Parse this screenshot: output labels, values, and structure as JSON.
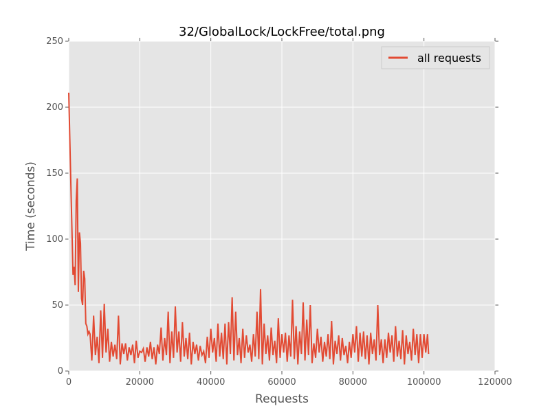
{
  "chart_data": {
    "type": "line",
    "title": "32/GlobalLock/LockFree/total.png",
    "xlabel": "Requests",
    "ylabel": "Time (seconds)",
    "xlim": [
      0,
      120000
    ],
    "xticks": [
      0,
      20000,
      40000,
      60000,
      80000,
      100000,
      120000
    ],
    "ylim": [
      0,
      250
    ],
    "yticks": [
      0,
      50,
      100,
      150,
      200,
      250
    ],
    "grid": true,
    "legend": "upper right",
    "background": "#e5e5e5",
    "x": [
      0,
      300,
      600,
      900,
      1200,
      1500,
      1800,
      2100,
      2400,
      2700,
      3000,
      3300,
      3600,
      3900,
      4200,
      4500,
      4800,
      5100,
      5400,
      5700,
      6000,
      6500,
      7000,
      7500,
      8000,
      8500,
      9000,
      9500,
      10000,
      10500,
      11000,
      11500,
      12000,
      12500,
      13000,
      13500,
      14000,
      14500,
      15000,
      15500,
      16000,
      16500,
      17000,
      17500,
      18000,
      18500,
      19000,
      19500,
      20000,
      20500,
      21000,
      21500,
      22000,
      22500,
      23000,
      23500,
      24000,
      24500,
      25000,
      25500,
      26000,
      26500,
      27000,
      27500,
      28000,
      28500,
      29000,
      29500,
      30000,
      30500,
      31000,
      31500,
      32000,
      32500,
      33000,
      33500,
      34000,
      34500,
      35000,
      35500,
      36000,
      36500,
      37000,
      37500,
      38000,
      38500,
      39000,
      39500,
      40000,
      40500,
      41000,
      41500,
      42000,
      42500,
      43000,
      43500,
      44000,
      44500,
      45000,
      45500,
      46000,
      46500,
      47000,
      47500,
      48000,
      48500,
      49000,
      49500,
      50000,
      50500,
      51000,
      51500,
      52000,
      52500,
      53000,
      53500,
      54000,
      54500,
      55000,
      55500,
      56000,
      56500,
      57000,
      57500,
      58000,
      58500,
      59000,
      59500,
      60000,
      60500,
      61000,
      61500,
      62000,
      62500,
      63000,
      63500,
      64000,
      64500,
      65000,
      65500,
      66000,
      66500,
      67000,
      67500,
      68000,
      68500,
      69000,
      69500,
      70000,
      70500,
      71000,
      71500,
      72000,
      72500,
      73000,
      73500,
      74000,
      74500,
      75000,
      75500,
      76000,
      76500,
      77000,
      77500,
      78000,
      78500,
      79000,
      79500,
      80000,
      80500,
      81000,
      81500,
      82000,
      82500,
      83000,
      83500,
      84000,
      84500,
      85000,
      85500,
      86000,
      86500,
      87000,
      87500,
      88000,
      88500,
      89000,
      89500,
      90000,
      90500,
      91000,
      91500,
      92000,
      92500,
      93000,
      93500,
      94000,
      94500,
      95000,
      95500,
      96000,
      96500,
      97000,
      97500,
      98000,
      98500,
      99000,
      99500,
      100000,
      100500,
      101000,
      101300
    ],
    "series": [
      {
        "name": "all requests",
        "color": "#e24a33",
        "values": [
          211,
          176,
          141,
          107,
          73,
          79,
          65,
          129,
          146,
          60,
          105,
          97,
          55,
          50,
          76,
          70,
          36,
          34,
          28,
          30,
          28,
          8,
          42,
          12,
          26,
          6,
          46,
          10,
          51,
          14,
          32,
          7,
          22,
          11,
          20,
          9,
          42,
          5,
          21,
          13,
          21,
          8,
          18,
          12,
          20,
          6,
          23,
          10,
          15,
          14,
          17,
          7,
          18,
          11,
          22,
          9,
          18,
          5,
          20,
          13,
          33,
          8,
          25,
          12,
          45,
          6,
          30,
          10,
          49,
          14,
          30,
          7,
          37,
          11,
          25,
          9,
          29,
          5,
          22,
          13,
          20,
          8,
          19,
          12,
          15,
          6,
          26,
          10,
          32,
          14,
          25,
          7,
          36,
          11,
          29,
          9,
          36,
          5,
          37,
          13,
          56,
          8,
          45,
          12,
          25,
          6,
          32,
          10,
          27,
          14,
          20,
          7,
          28,
          11,
          45,
          9,
          62,
          5,
          36,
          13,
          27,
          8,
          33,
          12,
          23,
          6,
          40,
          10,
          28,
          14,
          29,
          7,
          27,
          11,
          54,
          9,
          34,
          5,
          30,
          13,
          52,
          8,
          39,
          12,
          50,
          6,
          21,
          10,
          32,
          14,
          26,
          7,
          22,
          11,
          28,
          9,
          38,
          5,
          23,
          13,
          27,
          8,
          25,
          12,
          19,
          6,
          22,
          10,
          28,
          14,
          34,
          7,
          29,
          11,
          30,
          9,
          27,
          5,
          29,
          13,
          24,
          8,
          50,
          12,
          24,
          6,
          24,
          10,
          29,
          14,
          27,
          7,
          34,
          11,
          23,
          9,
          31,
          5,
          27,
          13,
          22,
          8,
          32,
          12,
          28,
          6,
          28,
          10,
          28,
          14,
          28,
          13
        ]
      }
    ]
  }
}
